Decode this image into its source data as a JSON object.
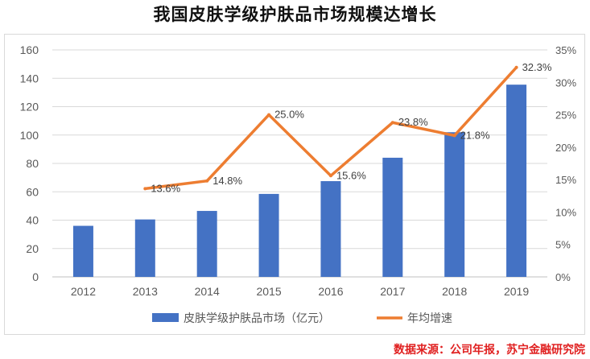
{
  "title": "我国皮肤学级护肤品市场规模达增长",
  "source": "数据来源：公司年报，苏宁金融研究院",
  "colors": {
    "bar": "#4472c4",
    "line": "#ed7d31",
    "grid": "#d9d9d9",
    "text": "#595959"
  },
  "chart_data": {
    "type": "bar+line",
    "categories": [
      "2012",
      "2013",
      "2014",
      "2015",
      "2016",
      "2017",
      "2018",
      "2019"
    ],
    "series": [
      {
        "name": "皮肤学级护肤品市场（亿元）",
        "type": "bar",
        "axis": "left",
        "values": [
          36,
          40.5,
          46.5,
          58.5,
          67.5,
          84,
          102,
          135.5
        ]
      },
      {
        "name": "年均增速",
        "type": "line",
        "axis": "right",
        "values": [
          null,
          13.6,
          14.8,
          25.0,
          15.6,
          23.8,
          21.8,
          32.3
        ],
        "labels": [
          "",
          "13.6%",
          "14.8%",
          "25.0%",
          "15.6%",
          "23.8%",
          "21.8%",
          "32.3%"
        ]
      }
    ],
    "y_left": {
      "min": 0,
      "max": 160,
      "ticks": [
        "0",
        "20",
        "40",
        "60",
        "80",
        "100",
        "120",
        "140",
        "160"
      ]
    },
    "y_right": {
      "min": 0,
      "max": 35,
      "ticks": [
        "0%",
        "5%",
        "10%",
        "15%",
        "20%",
        "25%",
        "30%",
        "35%"
      ]
    },
    "grid": true,
    "legend_position": "bottom"
  }
}
